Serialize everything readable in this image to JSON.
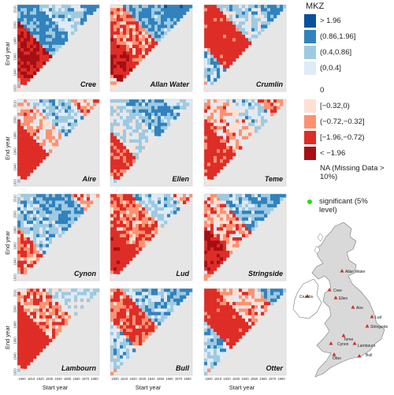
{
  "chart_data": {
    "type": "heatmap",
    "legend_title": "MKZ",
    "legend_items": [
      {
        "label": "> 1.96",
        "color": "#08519c"
      },
      {
        "label": "(0.86,1.96]",
        "color": "#3182bd"
      },
      {
        "label": "(0.4,0.86]",
        "color": "#9ecae1"
      },
      {
        "label": "(0,0.4]",
        "color": "#deebf7"
      },
      {
        "label": "0",
        "color": "#ffffff"
      },
      {
        "label": "[−0.32,0)",
        "color": "#fee0d2"
      },
      {
        "label": "(−0.72,−0.32]",
        "color": "#fc9272"
      },
      {
        "label": "[−1.96,−0.72)",
        "color": "#de2d26"
      },
      {
        "label": "< −1.96",
        "color": "#a50f15"
      }
    ],
    "na_label": "NA (Missing Data > 10%)",
    "na_color": "#e6e6e6",
    "significant_label": "significant (5% level)",
    "significant_color": "#22dd22",
    "xlabel": "Start year",
    "ylabel": "End year",
    "panels": [
      {
        "name": "Cree",
        "x_ticks": [],
        "y_ticks": [
          "1920",
          "1940",
          "1960",
          "1980",
          "2000",
          "2010"
        ],
        "pattern": [
          [
            10,
            40,
            -2
          ],
          [
            5,
            20,
            -1.2
          ],
          [
            40,
            60,
            1.1
          ],
          [
            60,
            85,
            0.5
          ],
          [
            85,
            100,
            1.4
          ]
        ]
      },
      {
        "name": "Allan Water",
        "x_ticks": [],
        "y_ticks": [],
        "pattern": [
          [
            8,
            30,
            -1.8
          ],
          [
            30,
            55,
            -0.6
          ],
          [
            55,
            80,
            0.9
          ],
          [
            80,
            100,
            1.5
          ]
        ]
      },
      {
        "name": "Crumlin",
        "x_ticks": [],
        "y_ticks": [],
        "pattern": [
          [
            5,
            25,
            0.6
          ],
          [
            25,
            55,
            -1.2
          ],
          [
            55,
            80,
            0.4
          ],
          [
            80,
            100,
            1.0
          ]
        ]
      },
      {
        "name": "Aire",
        "x_ticks": [],
        "y_ticks": [
          "1920",
          "1940",
          "1960",
          "1980",
          "2000",
          "2010"
        ],
        "pattern": [
          [
            5,
            35,
            -1.3
          ],
          [
            35,
            55,
            -0.2
          ],
          [
            55,
            80,
            0.6
          ],
          [
            80,
            100,
            -0.5
          ]
        ]
      },
      {
        "name": "Ellen",
        "x_ticks": [],
        "y_ticks": [],
        "pattern": [
          [
            5,
            30,
            -1.0
          ],
          [
            30,
            55,
            0.3
          ],
          [
            55,
            80,
            0.9
          ],
          [
            80,
            100,
            0.6
          ]
        ]
      },
      {
        "name": "Teme",
        "x_ticks": [],
        "y_ticks": [],
        "pattern": [
          [
            5,
            35,
            -1.1
          ],
          [
            35,
            60,
            -0.3
          ],
          [
            60,
            80,
            0.4
          ],
          [
            80,
            100,
            -0.6
          ]
        ]
      },
      {
        "name": "Cynon",
        "x_ticks": [],
        "y_ticks": [
          "1920",
          "1940",
          "1960",
          "1980",
          "2000",
          "2010"
        ],
        "pattern": [
          [
            5,
            30,
            -0.6
          ],
          [
            30,
            55,
            0.5
          ],
          [
            55,
            80,
            1.0
          ],
          [
            80,
            100,
            -0.4
          ]
        ]
      },
      {
        "name": "Lud",
        "x_ticks": [],
        "y_ticks": [],
        "pattern": [
          [
            5,
            30,
            -1.5
          ],
          [
            30,
            60,
            -0.7
          ],
          [
            60,
            85,
            0.5
          ],
          [
            85,
            100,
            -0.3
          ]
        ]
      },
      {
        "name": "Stringside",
        "x_ticks": [],
        "y_ticks": [],
        "pattern": [
          [
            5,
            30,
            -1.9
          ],
          [
            30,
            55,
            -0.4
          ],
          [
            55,
            80,
            0.7
          ],
          [
            80,
            100,
            1.1
          ]
        ]
      },
      {
        "name": "Lambourn",
        "x_ticks": [
          "1900",
          "1910",
          "1920",
          "1930",
          "1940",
          "1950",
          "1960",
          "1970",
          "1980"
        ],
        "y_ticks": [
          "1920",
          "1940",
          "1960",
          "1980",
          "2000",
          "2010"
        ],
        "pattern": [
          [
            5,
            40,
            -1.4
          ],
          [
            40,
            65,
            -0.5
          ],
          [
            65,
            85,
            0.3
          ],
          [
            85,
            100,
            0.5
          ]
        ]
      },
      {
        "name": "Bull",
        "x_ticks": [
          "1900",
          "1910",
          "1920",
          "1930",
          "1940",
          "1950",
          "1960",
          "1970",
          "1980"
        ],
        "y_ticks": [],
        "pattern": [
          [
            5,
            30,
            0.5
          ],
          [
            30,
            55,
            -0.8
          ],
          [
            55,
            80,
            0.6
          ],
          [
            80,
            100,
            1.0
          ]
        ]
      },
      {
        "name": "Otter",
        "x_ticks": [
          "1900",
          "1910",
          "1920",
          "1930",
          "1940",
          "1950",
          "1960",
          "1970",
          "1980"
        ],
        "y_ticks": [],
        "pattern": [
          [
            5,
            30,
            0.6
          ],
          [
            30,
            55,
            -1.2
          ],
          [
            55,
            80,
            -0.3
          ],
          [
            80,
            100,
            0.8
          ]
        ]
      }
    ]
  },
  "map": {
    "labels": [
      "Allan Water",
      "Cree",
      "Ellen",
      "Crumlin",
      "Aire",
      "Lud",
      "Stringside",
      "Teme",
      "Cynon",
      "Lambourn",
      "Bull",
      "Otter"
    ]
  }
}
